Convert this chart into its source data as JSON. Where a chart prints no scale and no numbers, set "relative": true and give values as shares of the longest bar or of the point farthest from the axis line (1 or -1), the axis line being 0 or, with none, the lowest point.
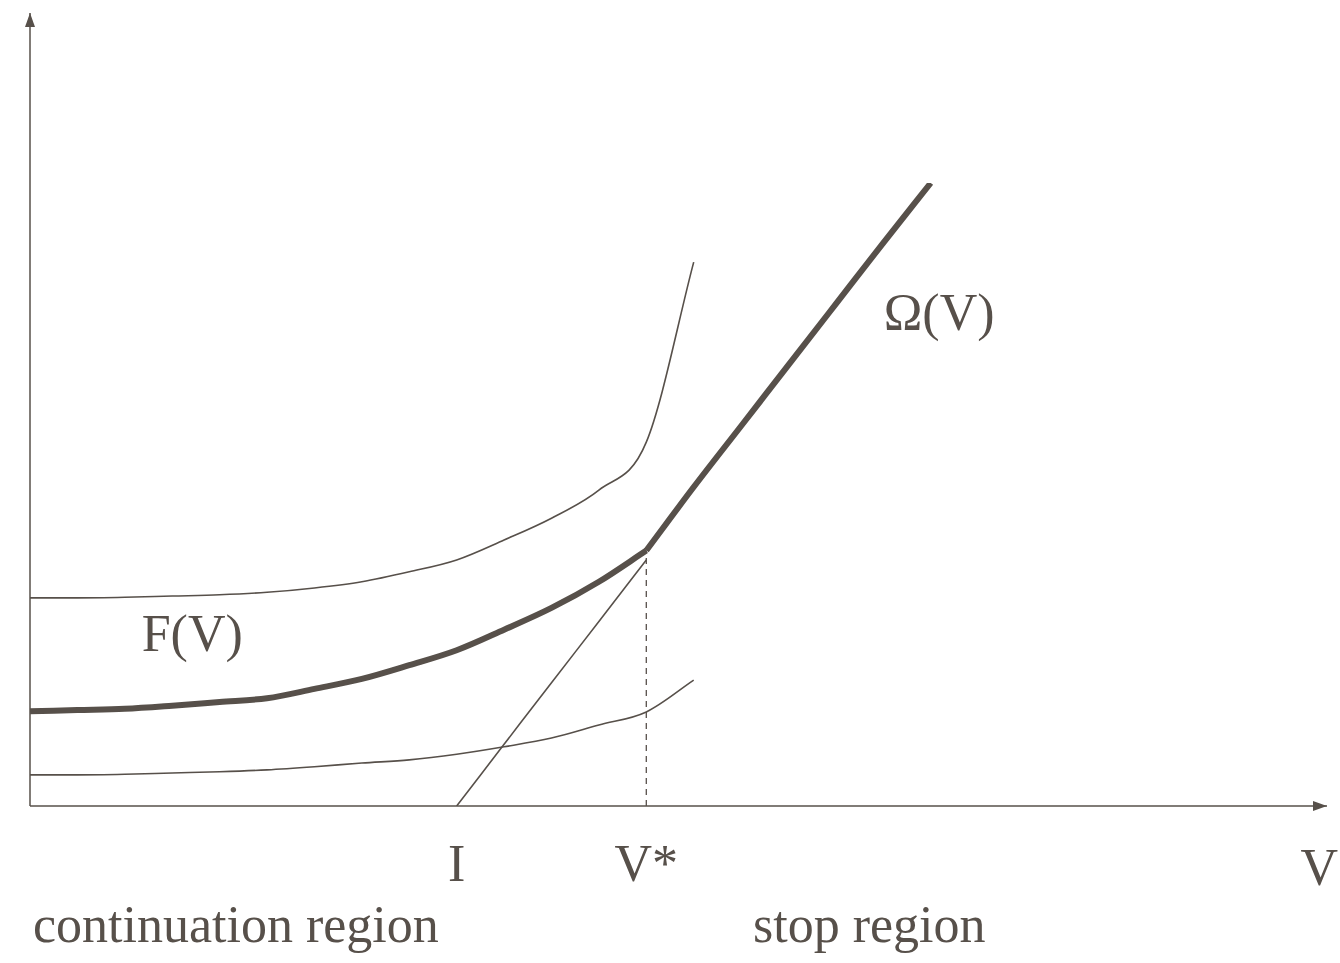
{
  "chart_data": {
    "type": "line",
    "relative": true,
    "xlabel": "V",
    "categories": [
      null,
      null,
      null,
      null,
      null,
      null,
      null,
      null,
      null,
      "I",
      null,
      null,
      null,
      "V*",
      null,
      null,
      null,
      null,
      null,
      null,
      null,
      null,
      null,
      null,
      null,
      null,
      null,
      null
    ],
    "grid": false,
    "legend": false,
    "marker": "none",
    "annotations": [
      "continuation region",
      "stop region"
    ],
    "ref_lines": [
      {
        "axis": "x",
        "value": "V*",
        "line_style": "dashed",
        "color": "#57504a"
      }
    ],
    "series": [
      {
        "color": "#57504a",
        "values": [
          0.334,
          0.334,
          0.335,
          0.337,
          0.339,
          0.343,
          0.35,
          0.36,
          0.376,
          0.395,
          0.427,
          0.462,
          0.507,
          0.584,
          0.873,
          null,
          null,
          null,
          null,
          null,
          null,
          null,
          null,
          null,
          null,
          null,
          null,
          null
        ]
      },
      {
        "name": "F(V)",
        "color": "#57504a",
        "values": [
          0.152,
          0.154,
          0.156,
          0.161,
          0.167,
          0.173,
          0.188,
          0.204,
          0.226,
          0.25,
          0.283,
          0.318,
          0.36,
          0.41,
          null,
          null,
          null,
          null,
          null,
          null,
          null,
          null,
          null,
          null,
          null,
          null,
          null,
          null
        ]
      },
      {
        "name": "Ω(V)",
        "color": "#57504a",
        "values": [
          null,
          null,
          null,
          null,
          null,
          null,
          null,
          null,
          null,
          null,
          null,
          null,
          null,
          0.41,
          0.512,
          0.61,
          0.708,
          0.806,
          0.904,
          1.0,
          null,
          null,
          null,
          null,
          null,
          null,
          null,
          null
        ]
      },
      {
        "color": "#57504a",
        "values": [
          null,
          null,
          null,
          null,
          null,
          null,
          null,
          null,
          null,
          0,
          0.099,
          0.198,
          0.296,
          0.395,
          null,
          null,
          null,
          null,
          null,
          null,
          null,
          null,
          null,
          null,
          null,
          null,
          null,
          null
        ]
      },
      {
        "color": "#57504a",
        "values": [
          0.05,
          0.05,
          0.051,
          0.053,
          0.055,
          0.058,
          0.063,
          0.069,
          0.074,
          0.083,
          0.095,
          0.109,
          0.13,
          0.151,
          0.202,
          null,
          null,
          null,
          null,
          null,
          null,
          null,
          null,
          null,
          null,
          null,
          null,
          null
        ]
      }
    ]
  }
}
